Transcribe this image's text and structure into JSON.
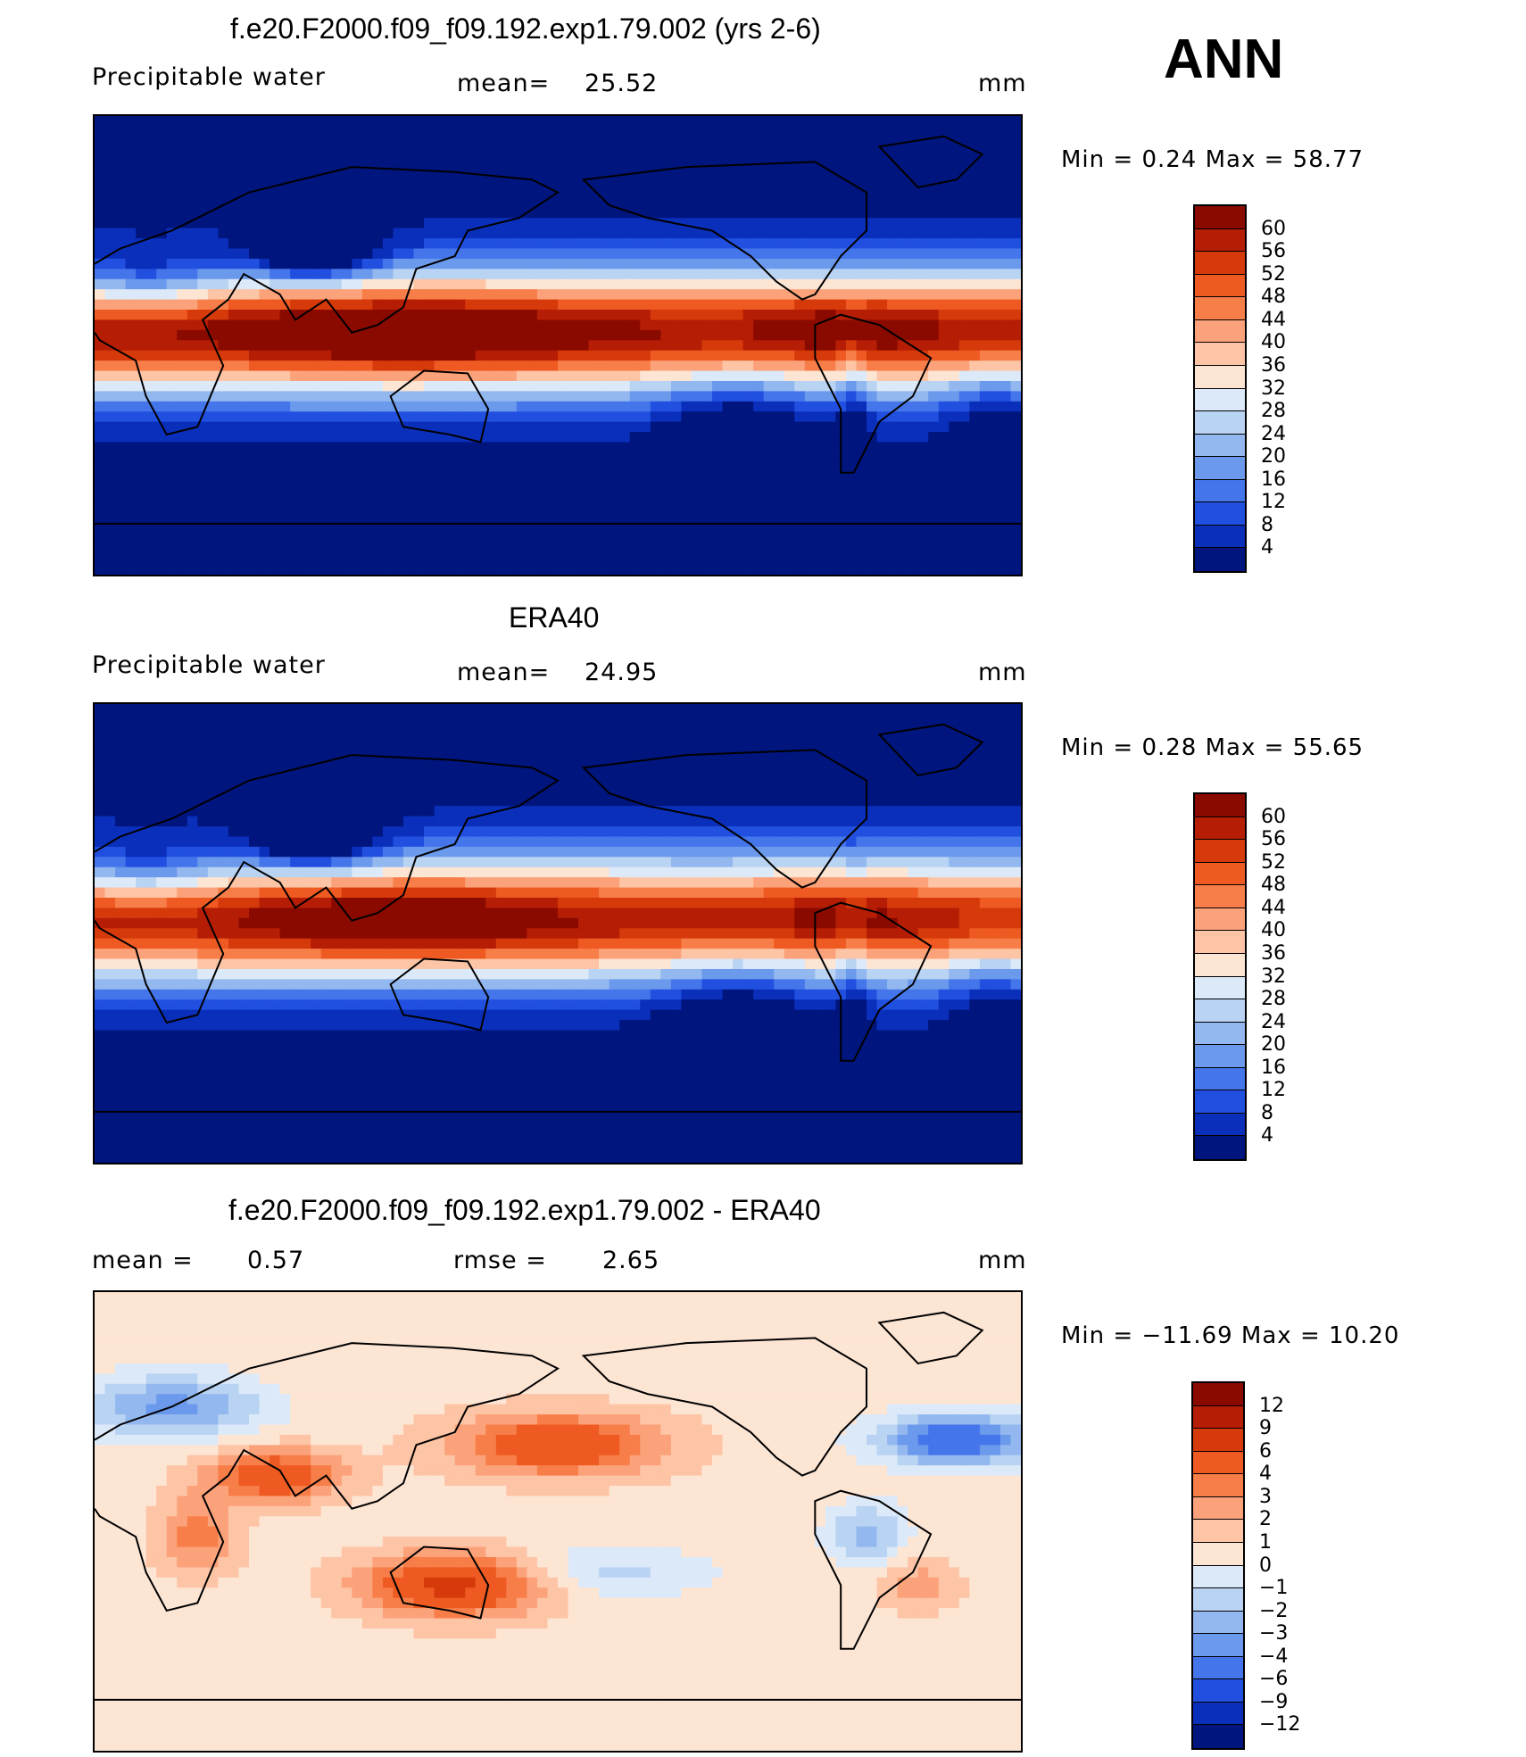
{
  "header": {
    "season": "ANN"
  },
  "panels": [
    {
      "title": "f.e20.F2000.f09_f09.192.exp1.79.002 (yrs 2-6)",
      "left_label": "Precipitable  water",
      "mid_label": "mean=",
      "mid_value": "25.52",
      "units": "mm",
      "minmax": "Min  =     0.24  Max  =    58.77",
      "field": "model",
      "colorbar": {
        "labels": [
          "60",
          "56",
          "52",
          "48",
          "44",
          "40",
          "36",
          "32",
          "28",
          "24",
          "20",
          "16",
          "12",
          "8",
          "4"
        ],
        "colors": [
          "#8b0a00",
          "#b51d05",
          "#d63a0b",
          "#ee5a21",
          "#f77e48",
          "#fca27a",
          "#fdc4a5",
          "#fde5d4",
          "#dce9f8",
          "#b9d3f3",
          "#93b8ef",
          "#6b99ec",
          "#4475ea",
          "#2150e0",
          "#0a2fba",
          "#00157e"
        ]
      }
    },
    {
      "title": "ERA40",
      "left_label": "Precipitable  water",
      "mid_label": "mean=",
      "mid_value": "24.95",
      "units": "mm",
      "minmax": "Min  =     0.28  Max  =    55.65",
      "field": "obs",
      "colorbar": {
        "labels": [
          "60",
          "56",
          "52",
          "48",
          "44",
          "40",
          "36",
          "32",
          "28",
          "24",
          "20",
          "16",
          "12",
          "8",
          "4"
        ],
        "colors": [
          "#8b0a00",
          "#b51d05",
          "#d63a0b",
          "#ee5a21",
          "#f77e48",
          "#fca27a",
          "#fdc4a5",
          "#fde5d4",
          "#dce9f8",
          "#b9d3f3",
          "#93b8ef",
          "#6b99ec",
          "#4475ea",
          "#2150e0",
          "#0a2fba",
          "#00157e"
        ]
      }
    },
    {
      "title": "f.e20.F2000.f09_f09.192.exp1.79.002 - ERA40",
      "left_label": "mean  =",
      "left_value": "0.57",
      "mid_label": "rmse  =",
      "mid_value": "2.65",
      "units": "mm",
      "minmax": "Min  = −11.69  Max  =    10.20",
      "field": "diff",
      "colorbar": {
        "labels": [
          "12",
          "9",
          "6",
          "4",
          "3",
          "2",
          "1",
          "0",
          "−1",
          "−2",
          "−3",
          "−4",
          "−6",
          "−9",
          "−12"
        ],
        "colors": [
          "#8b0a00",
          "#b51d05",
          "#d63a0b",
          "#ee5a21",
          "#f77e48",
          "#fca27a",
          "#fdc4a5",
          "#fde5d4",
          "#dce9f8",
          "#b9d3f3",
          "#93b8ef",
          "#6b99ec",
          "#4475ea",
          "#2150e0",
          "#0a2fba",
          "#00157e"
        ]
      }
    }
  ],
  "chart_data": [
    {
      "type": "heatmap",
      "title": "f.e20.F2000.f09_f09.192.exp1.79.002 (yrs 2-6)",
      "variable": "Precipitable  water",
      "units": "mm",
      "mean": 25.52,
      "min": 0.24,
      "max": 58.77,
      "contour_levels": [
        4,
        8,
        12,
        16,
        20,
        24,
        28,
        32,
        36,
        40,
        44,
        48,
        52,
        56,
        60
      ]
    },
    {
      "type": "heatmap",
      "title": "ERA40",
      "variable": "Precipitable  water",
      "units": "mm",
      "mean": 24.95,
      "min": 0.28,
      "max": 55.65,
      "contour_levels": [
        4,
        8,
        12,
        16,
        20,
        24,
        28,
        32,
        36,
        40,
        44,
        48,
        52,
        56,
        60
      ]
    },
    {
      "type": "heatmap",
      "title": "f.e20.F2000.f09_f09.192.exp1.79.002 - ERA40",
      "units": "mm",
      "mean": 0.57,
      "rmse": 2.65,
      "min": -11.69,
      "max": 10.2,
      "contour_levels": [
        -12,
        -9,
        -6,
        -4,
        -3,
        -2,
        -1,
        0,
        1,
        2,
        3,
        4,
        6,
        9,
        12
      ]
    }
  ]
}
